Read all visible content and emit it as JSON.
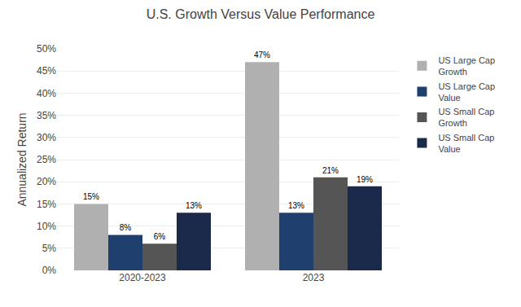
{
  "chart_data": {
    "type": "bar",
    "title": "U.S. Growth Versus Value Performance",
    "categories": [
      "2020-2023",
      "2023"
    ],
    "series": [
      {
        "name": "US Large Cap\nGrowth",
        "color": "#B0B0B0",
        "values": [
          15,
          47
        ],
        "value_labels": [
          "15%",
          "47%"
        ]
      },
      {
        "name": "US Large Cap\nValue",
        "color": "#1F3F6E",
        "values": [
          8,
          13
        ],
        "value_labels": [
          "8%",
          "13%"
        ]
      },
      {
        "name": "US Small Cap\nGrowth",
        "color": "#555555",
        "values": [
          6,
          21
        ],
        "value_labels": [
          "6%",
          "21%"
        ]
      },
      {
        "name": "US Small Cap\nValue",
        "color": "#1B2A4A",
        "values": [
          13,
          19
        ],
        "value_labels": [
          "13%",
          "19%"
        ]
      }
    ],
    "ylabel": "Annualized Return",
    "ylim": [
      0,
      50
    ],
    "yticks": [
      {
        "value": 0,
        "label": "0%"
      },
      {
        "value": 5,
        "label": "5%"
      },
      {
        "value": 10,
        "label": "10%"
      },
      {
        "value": 15,
        "label": "15%"
      },
      {
        "value": 20,
        "label": "20%"
      },
      {
        "value": 25,
        "label": "25%"
      },
      {
        "value": 30,
        "label": "30%"
      },
      {
        "value": 35,
        "label": "35%"
      },
      {
        "value": 40,
        "label": "40%"
      },
      {
        "value": 45,
        "label": "45%"
      },
      {
        "value": 50,
        "label": "50%"
      }
    ],
    "grid": true,
    "legend": "upper right",
    "data_labels": true
  }
}
